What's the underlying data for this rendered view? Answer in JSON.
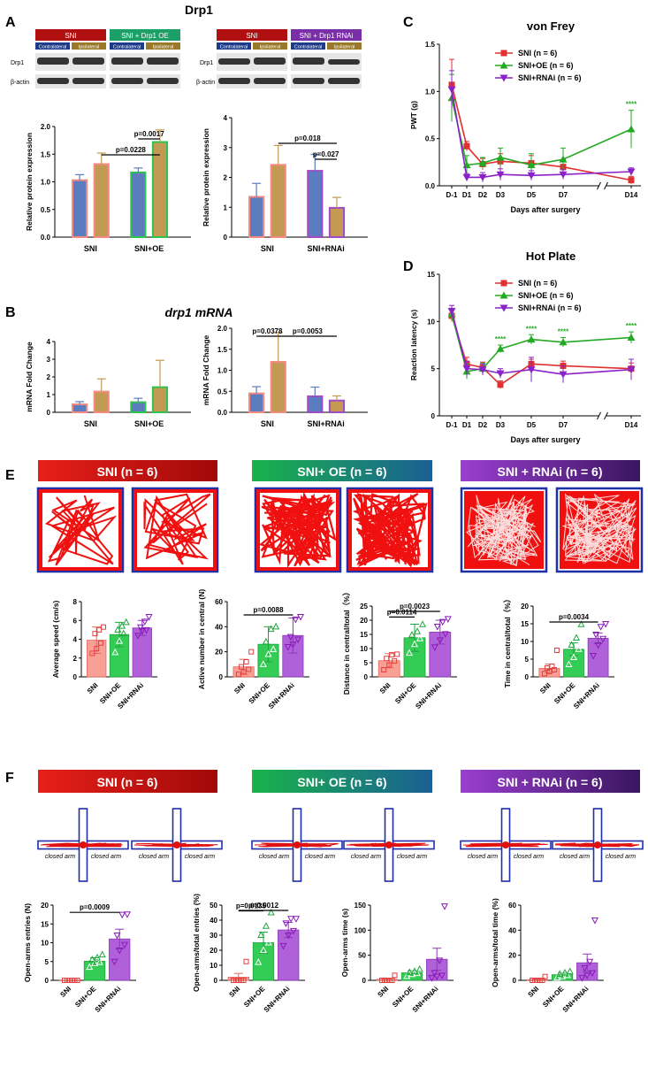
{
  "panels": {
    "A": "A",
    "B": "B",
    "C": "C",
    "D": "D",
    "E": "E",
    "F": "F"
  },
  "colors": {
    "sni": "#F58A80",
    "oe": "#2EC44E",
    "rnai": "#A24BC6",
    "gold": "#C39A53",
    "blue": "#5B7DBF",
    "red_line": "#E03030",
    "green_line": "#22AA22",
    "purple_line": "#8A22C8",
    "banner_red": "#B01010",
    "banner_green": "#1CA068",
    "banner_purple": "#7A2EA8",
    "sig_green": "#22AA22"
  },
  "A": {
    "title": "Drp1",
    "blot_left": {
      "banner1": "SNI",
      "banner2": "SNI + Drp1 OE",
      "lane1": "Contralateral",
      "lane2": "Ipsilateral",
      "lane3": "Contralateral",
      "lane4": "Ipsilateral",
      "row1": "Drp1",
      "row2": "β-actin"
    },
    "blot_right": {
      "banner1": "SNI",
      "banner2": "SNI + Drp1 RNAi",
      "lane1": "Contralateral",
      "lane2": "Ipsilateral",
      "lane3": "Contralateral",
      "lane4": "Ipsilateral",
      "row1": "Drp1",
      "row2": "β-actin"
    }
  },
  "B": {
    "title": "drp1 mRNA"
  },
  "E": {
    "banner1": "SNI (n = 6)",
    "banner2": "SNI+ OE (n = 6)",
    "banner3": "SNI +  RNAi (n = 6)"
  },
  "F": {
    "banner1": "SNI (n = 6)",
    "banner2": "SNI+ OE (n = 6)",
    "banner3": "SNI + RNAi (n = 6)",
    "arm_label": "closed arm"
  },
  "chart_data": [
    {
      "id": "A-left",
      "type": "bar",
      "ylabel": "Relative protein expression",
      "ylim": [
        0,
        2.0
      ],
      "yticks": [
        "0.0",
        "0.5",
        "1.0",
        "1.5",
        "2.0"
      ],
      "groups": [
        "SNI",
        "SNI+OE"
      ],
      "values": [
        1.03,
        1.32,
        1.17,
        1.72
      ],
      "errors": [
        0.1,
        0.2,
        0.08,
        0.22
      ],
      "bar_colors": [
        "blue",
        "gold",
        "blue",
        "gold"
      ],
      "edge_colors": [
        "sni",
        "sni",
        "oe",
        "oe"
      ],
      "sig": [
        {
          "label": "p=0.0228",
          "from": 1,
          "to": 3,
          "level": 1
        },
        {
          "label": "p=0.0017",
          "from": 2,
          "to": 3,
          "level": 2
        }
      ]
    },
    {
      "id": "A-right",
      "type": "bar",
      "ylabel": "Relative protein expression",
      "ylim": [
        0,
        4
      ],
      "yticks": [
        "0",
        "1",
        "2",
        "3",
        "4"
      ],
      "groups": [
        "SNI",
        "SNI+RNAi"
      ],
      "values": [
        1.35,
        2.42,
        2.22,
        0.98
      ],
      "errors": [
        0.45,
        0.65,
        0.55,
        0.35
      ],
      "bar_colors": [
        "blue",
        "gold",
        "blue",
        "gold"
      ],
      "edge_colors": [
        "sni",
        "sni",
        "rnai",
        "rnai"
      ],
      "sig": [
        {
          "label": "p=0.018",
          "from": 1,
          "to": 3,
          "level": 2
        },
        {
          "label": "p=0.027",
          "from": 2,
          "to": 3,
          "level": 1
        }
      ]
    },
    {
      "id": "B-left",
      "type": "bar",
      "ylabel": "mRNA Fold Change",
      "ylim": [
        0,
        4
      ],
      "yticks": [
        "0",
        "1",
        "2",
        "3",
        "4"
      ],
      "groups": [
        "SNI",
        "SNI+OE"
      ],
      "values": [
        0.45,
        1.17,
        0.57,
        1.42
      ],
      "errors": [
        0.15,
        0.72,
        0.22,
        1.52
      ],
      "bar_colors": [
        "blue",
        "gold",
        "blue",
        "gold"
      ],
      "edge_colors": [
        "sni",
        "sni",
        "oe",
        "oe"
      ],
      "sig": []
    },
    {
      "id": "B-right",
      "type": "bar",
      "ylabel": "mRNA Fold Change",
      "ylim": [
        0,
        2.0
      ],
      "yticks": [
        "0.0",
        "0.5",
        "1.0",
        "1.5",
        "2.0"
      ],
      "groups": [
        "SNI",
        "SNI+RNAi"
      ],
      "values": [
        0.45,
        1.2,
        0.38,
        0.28
      ],
      "errors": [
        0.16,
        0.7,
        0.22,
        0.11
      ],
      "bar_colors": [
        "blue",
        "gold",
        "blue",
        "gold"
      ],
      "edge_colors": [
        "sni",
        "sni",
        "rnai",
        "rnai"
      ],
      "sig": [
        {
          "label": "p=0.0378",
          "from": 0,
          "to": 1,
          "level": 1
        },
        {
          "label": "p=0.0053",
          "from": 1,
          "to": 3,
          "level": 1
        }
      ]
    },
    {
      "id": "C",
      "type": "line",
      "title": "von Frey",
      "xlabel": "Days after surgery",
      "ylabel": "PWT (g)",
      "ylim": [
        0,
        1.5
      ],
      "yticks": [
        "0.0",
        "0.5",
        "1.0",
        "1.5"
      ],
      "x": [
        "D-1",
        "D1",
        "D2",
        "D3",
        "D5",
        "D7",
        "D14"
      ],
      "series": [
        {
          "name": "SNI (n = 6)",
          "color": "red_line",
          "marker": "square",
          "values": [
            1.07,
            0.42,
            0.23,
            0.26,
            0.24,
            0.2,
            0.06
          ],
          "errors": [
            0.27,
            0.05,
            0.06,
            0.08,
            0.08,
            0.08,
            0.04
          ]
        },
        {
          "name": "SNI+OE (n = 6)",
          "color": "green_line",
          "marker": "tri-up",
          "values": [
            0.93,
            0.22,
            0.24,
            0.3,
            0.22,
            0.28,
            0.6
          ],
          "errors": [
            0.25,
            0.1,
            0.06,
            0.1,
            0.12,
            0.12,
            0.2
          ]
        },
        {
          "name": "SNI+RNAi (n = 6)",
          "color": "purple_line",
          "marker": "tri-down",
          "values": [
            1.02,
            0.09,
            0.09,
            0.12,
            0.11,
            0.12,
            0.15
          ],
          "errors": [
            0.2,
            0.04,
            0.05,
            0.06,
            0.05,
            0.05,
            0.04
          ]
        }
      ],
      "sig": [
        {
          "label": "****",
          "x": "D14"
        }
      ]
    },
    {
      "id": "D",
      "type": "line",
      "title": "Hot Plate",
      "xlabel": "Days after surgery",
      "ylabel": "Reaction latency (s)",
      "ylim": [
        0,
        15
      ],
      "yticks": [
        "0",
        "5",
        "10",
        "15"
      ],
      "x": [
        "D-1",
        "D1",
        "D2",
        "D3",
        "D5",
        "D7",
        "D14"
      ],
      "series": [
        {
          "name": "SNI (n = 6)",
          "color": "red_line",
          "marker": "square",
          "values": [
            10.6,
            5.5,
            5.1,
            3.3,
            5.5,
            5.3,
            5.0
          ],
          "errors": [
            0.6,
            0.7,
            0.6,
            0.4,
            0.5,
            0.5,
            0.6
          ]
        },
        {
          "name": "SNI+OE (n = 6)",
          "color": "green_line",
          "marker": "tri-up",
          "values": [
            10.8,
            4.7,
            5.0,
            7.1,
            8.1,
            7.8,
            8.3
          ],
          "errors": [
            0.6,
            0.8,
            0.6,
            0.4,
            0.5,
            0.5,
            0.6
          ]
        },
        {
          "name": "SNI+RNAi (n = 6)",
          "color": "purple_line",
          "marker": "tri-down",
          "values": [
            11.1,
            5.0,
            4.9,
            4.5,
            4.9,
            4.4,
            4.9
          ],
          "errors": [
            0.6,
            0.8,
            0.6,
            0.5,
            1.3,
            0.9,
            1.1
          ]
        }
      ],
      "sig": [
        {
          "label": "****",
          "x": "D3"
        },
        {
          "label": "****",
          "x": "D5"
        },
        {
          "label": "****",
          "x": "D7"
        },
        {
          "label": "****",
          "x": "D14"
        }
      ]
    },
    {
      "id": "E1",
      "type": "bar",
      "ylabel": "Average speed (cm/s)",
      "ylim": [
        0,
        8
      ],
      "yticks": [
        "0",
        "2",
        "4",
        "6",
        "8"
      ],
      "categories": [
        "SNI",
        "SNI+OE",
        "SNI+RNAi"
      ],
      "values": [
        3.9,
        4.5,
        5.2
      ],
      "errors": [
        1.4,
        1.3,
        0.8
      ],
      "points": [
        [
          2.5,
          3.0,
          3.6,
          4.6,
          5.0,
          5.3
        ],
        [
          2.6,
          3.8,
          4.6,
          5.0,
          5.4,
          5.8
        ],
        [
          4.4,
          4.9,
          5.0,
          5.3,
          5.9,
          6.4
        ]
      ],
      "sig": []
    },
    {
      "id": "E2",
      "type": "bar",
      "ylabel": "Active number in central (N)",
      "ylim": [
        0,
        60
      ],
      "yticks": [
        "0",
        "20",
        "40",
        "60"
      ],
      "categories": [
        "SNI",
        "SNI+OE",
        "SNI+RNAi"
      ],
      "values": [
        8,
        26,
        33
      ],
      "errors": [
        6,
        14,
        14
      ],
      "points": [
        [
          2,
          4,
          6,
          8,
          12,
          20
        ],
        [
          10,
          18,
          22,
          28,
          38,
          40
        ],
        [
          24,
          26,
          30,
          32,
          46,
          48
        ]
      ],
      "sig": [
        {
          "label": "p=0.0088",
          "from": 0,
          "to": 2,
          "level": 1
        }
      ]
    },
    {
      "id": "E3",
      "type": "bar",
      "ylabel": "Distance in central/total（%）",
      "ylim": [
        0,
        25
      ],
      "yticks": [
        "0",
        "5",
        "10",
        "15",
        "20",
        "25"
      ],
      "categories": [
        "SNI",
        "SNI+OE",
        "SNI+RNAi"
      ],
      "values": [
        5.7,
        13.8,
        15.8
      ],
      "errors": [
        2.5,
        4.8,
        4.2
      ],
      "points": [
        [
          2.5,
          4.2,
          5.6,
          6.5,
          7.8,
          8.0
        ],
        [
          8.4,
          11.5,
          13.5,
          14.8,
          16.0,
          18.5
        ],
        [
          10.5,
          13.0,
          15.2,
          17.8,
          19.5,
          20.5
        ]
      ],
      "sig": [
        {
          "label": "p=0.0114",
          "from": 0,
          "to": 1,
          "level": 1
        },
        {
          "label": "p=0.0023",
          "from": 0,
          "to": 2,
          "level": 2
        }
      ]
    },
    {
      "id": "E4",
      "type": "bar",
      "ylabel": "Time in central/total（%）",
      "ylim": [
        0,
        20
      ],
      "yticks": [
        "0",
        "5",
        "10",
        "15",
        "20"
      ],
      "categories": [
        "SNI",
        "SNI+OE",
        "SNI+RNAi"
      ],
      "values": [
        2.4,
        7.8,
        10.9
      ],
      "errors": [
        1.2,
        1.8,
        1.5
      ],
      "points": [
        [
          0.9,
          1.5,
          2.0,
          2.5,
          3.0,
          7.5
        ],
        [
          3.5,
          5.5,
          7.8,
          9.0,
          11.0,
          14.8
        ],
        [
          6.0,
          9.0,
          10.8,
          12.0,
          14.2,
          15.0
        ]
      ],
      "sig": [
        {
          "label": "p=0.0034",
          "from": 0,
          "to": 2,
          "level": 1
        }
      ]
    },
    {
      "id": "F1",
      "type": "bar",
      "ylabel": "Open-arms entries (N)",
      "ylim": [
        0,
        20
      ],
      "yticks": [
        "0",
        "5",
        "10",
        "15",
        "20"
      ],
      "categories": [
        "SNI",
        "SNI+OE",
        "SNI+RNAi"
      ],
      "values": [
        0,
        5.1,
        11.0
      ],
      "errors": [
        0,
        0.9,
        2.6
      ],
      "points": [
        [
          0,
          0,
          0,
          0,
          0,
          0
        ],
        [
          3.5,
          4.5,
          4.8,
          5.5,
          6.0,
          6.8
        ],
        [
          5.0,
          8.0,
          9.5,
          12.0,
          17.5,
          17.6
        ]
      ],
      "sig": [
        {
          "label": "p=0.0009",
          "from": 0,
          "to": 2,
          "level": 1
        }
      ]
    },
    {
      "id": "F2",
      "type": "bar",
      "ylabel": "Open-arms/total entries (%)",
      "ylim": [
        0,
        50
      ],
      "yticks": [
        "0",
        "10",
        "20",
        "30",
        "40",
        "50"
      ],
      "categories": [
        "SNI",
        "SNI+OE",
        "SNI+RNAi"
      ],
      "values": [
        2.1,
        25,
        33.5
      ],
      "errors": [
        2.5,
        7,
        5
      ],
      "points": [
        [
          0,
          0,
          0,
          0,
          0,
          12.5
        ],
        [
          12,
          20,
          25,
          30,
          36,
          45
        ],
        [
          23,
          30,
          33,
          38,
          41,
          41
        ]
      ],
      "sig": [
        {
          "label": "p=0.0135",
          "from": 0,
          "to": 1,
          "level": 1
        },
        {
          "label": "p=0.0012",
          "from": 0,
          "to": 2,
          "level": 2
        }
      ]
    },
    {
      "id": "F3",
      "type": "bar",
      "ylabel": "Open-arms time (s)",
      "ylim": [
        0,
        150
      ],
      "yticks": [
        "0",
        "50",
        "100",
        "150"
      ],
      "categories": [
        "SNI",
        "SNI+OE",
        "SNI+RNAi"
      ],
      "values": [
        2,
        15,
        42
      ],
      "errors": [
        2,
        4,
        22
      ],
      "points": [
        [
          0,
          0,
          0,
          0,
          0,
          10
        ],
        [
          8,
          12,
          14,
          16,
          18,
          22
        ],
        [
          5,
          8,
          10,
          15,
          40,
          148
        ]
      ],
      "sig": []
    },
    {
      "id": "F4",
      "type": "bar",
      "ylabel": "Open-arms/total time (%)",
      "ylim": [
        0,
        60
      ],
      "yticks": [
        "0",
        "20",
        "40",
        "60"
      ],
      "categories": [
        "SNI",
        "SNI+OE",
        "SNI+RNAi"
      ],
      "values": [
        0.5,
        4.5,
        14
      ],
      "errors": [
        0.5,
        1.2,
        7
      ],
      "points": [
        [
          0,
          0,
          0,
          0,
          0,
          3
        ],
        [
          2,
          3,
          4,
          5,
          6,
          7
        ],
        [
          2,
          4,
          6,
          10,
          15,
          48
        ]
      ],
      "sig": []
    }
  ]
}
